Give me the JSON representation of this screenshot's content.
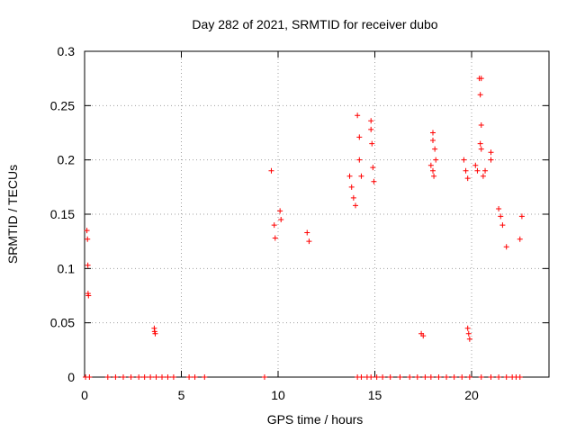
{
  "chart_data": {
    "type": "scatter",
    "title": "Day 282 of 2021, SRMTID for receiver dubo",
    "xlabel": "GPS time / hours",
    "ylabel": "SRMTID / TECUs",
    "xlim": [
      0,
      24
    ],
    "ylim": [
      0,
      0.3
    ],
    "x_ticks": [
      0,
      5,
      10,
      15,
      20
    ],
    "y_ticks": [
      0,
      0.05,
      0.1,
      0.15,
      0.2,
      0.25,
      0.3
    ],
    "x_tick_labels": [
      "0",
      "5",
      "10",
      "15",
      "20"
    ],
    "y_tick_labels": [
      "0",
      "0.05",
      "0.1",
      "0.15",
      "0.2",
      "0.25",
      "0.3"
    ],
    "grid": true,
    "marker": "+",
    "color": "#ff0000",
    "series": [
      {
        "name": "SRMTID",
        "points": [
          [
            0.05,
            0.0
          ],
          [
            0.12,
            0.135
          ],
          [
            0.15,
            0.127
          ],
          [
            0.17,
            0.103
          ],
          [
            0.18,
            0.077
          ],
          [
            0.2,
            0.075
          ],
          [
            0.25,
            0.0
          ],
          [
            3.6,
            0.045
          ],
          [
            3.62,
            0.042
          ],
          [
            3.65,
            0.04
          ],
          [
            1.2,
            0.0
          ],
          [
            1.6,
            0.0
          ],
          [
            2.0,
            0.0
          ],
          [
            2.4,
            0.0
          ],
          [
            2.8,
            0.0
          ],
          [
            3.1,
            0.0
          ],
          [
            3.4,
            0.0
          ],
          [
            3.7,
            0.0
          ],
          [
            4.0,
            0.0
          ],
          [
            4.3,
            0.0
          ],
          [
            4.6,
            0.0
          ],
          [
            5.4,
            0.0
          ],
          [
            5.7,
            0.0
          ],
          [
            6.2,
            0.0
          ],
          [
            9.3,
            0.0
          ],
          [
            14.1,
            0.0
          ],
          [
            14.3,
            0.0
          ],
          [
            14.6,
            0.0
          ],
          [
            14.8,
            0.0
          ],
          [
            15.1,
            0.0
          ],
          [
            15.4,
            0.0
          ],
          [
            15.8,
            0.0
          ],
          [
            16.3,
            0.0
          ],
          [
            16.8,
            0.0
          ],
          [
            17.2,
            0.0
          ],
          [
            17.6,
            0.0
          ],
          [
            17.9,
            0.0
          ],
          [
            18.3,
            0.0
          ],
          [
            18.7,
            0.0
          ],
          [
            19.1,
            0.0
          ],
          [
            19.5,
            0.0
          ],
          [
            19.9,
            0.0
          ],
          [
            20.5,
            0.0
          ],
          [
            21.0,
            0.0
          ],
          [
            21.4,
            0.0
          ],
          [
            21.8,
            0.0
          ],
          [
            22.1,
            0.0
          ],
          [
            22.3,
            0.0
          ],
          [
            22.5,
            0.0
          ],
          [
            9.65,
            0.19
          ],
          [
            10.1,
            0.153
          ],
          [
            10.15,
            0.145
          ],
          [
            9.8,
            0.14
          ],
          [
            9.85,
            0.128
          ],
          [
            11.5,
            0.133
          ],
          [
            11.6,
            0.125
          ],
          [
            14.1,
            0.241
          ],
          [
            14.2,
            0.221
          ],
          [
            14.2,
            0.2
          ],
          [
            14.8,
            0.236
          ],
          [
            14.8,
            0.228
          ],
          [
            14.85,
            0.215
          ],
          [
            14.9,
            0.193
          ],
          [
            14.95,
            0.18
          ],
          [
            13.7,
            0.185
          ],
          [
            13.8,
            0.175
          ],
          [
            14.3,
            0.185
          ],
          [
            13.9,
            0.165
          ],
          [
            14.0,
            0.158
          ],
          [
            18.0,
            0.225
          ],
          [
            18.0,
            0.218
          ],
          [
            18.1,
            0.21
          ],
          [
            18.15,
            0.2
          ],
          [
            17.9,
            0.195
          ],
          [
            18.0,
            0.19
          ],
          [
            18.05,
            0.185
          ],
          [
            19.6,
            0.2
          ],
          [
            19.7,
            0.19
          ],
          [
            19.8,
            0.183
          ],
          [
            20.4,
            0.275
          ],
          [
            20.5,
            0.275
          ],
          [
            20.45,
            0.26
          ],
          [
            20.5,
            0.232
          ],
          [
            20.45,
            0.215
          ],
          [
            20.5,
            0.21
          ],
          [
            20.2,
            0.195
          ],
          [
            20.3,
            0.19
          ],
          [
            20.6,
            0.185
          ],
          [
            20.7,
            0.19
          ],
          [
            21.0,
            0.207
          ],
          [
            21.0,
            0.2
          ],
          [
            21.4,
            0.155
          ],
          [
            21.5,
            0.148
          ],
          [
            21.6,
            0.14
          ],
          [
            22.6,
            0.148
          ],
          [
            21.8,
            0.12
          ],
          [
            22.5,
            0.127
          ],
          [
            19.8,
            0.045
          ],
          [
            19.85,
            0.04
          ],
          [
            19.9,
            0.035
          ],
          [
            17.4,
            0.04
          ],
          [
            17.5,
            0.038
          ]
        ]
      }
    ]
  }
}
